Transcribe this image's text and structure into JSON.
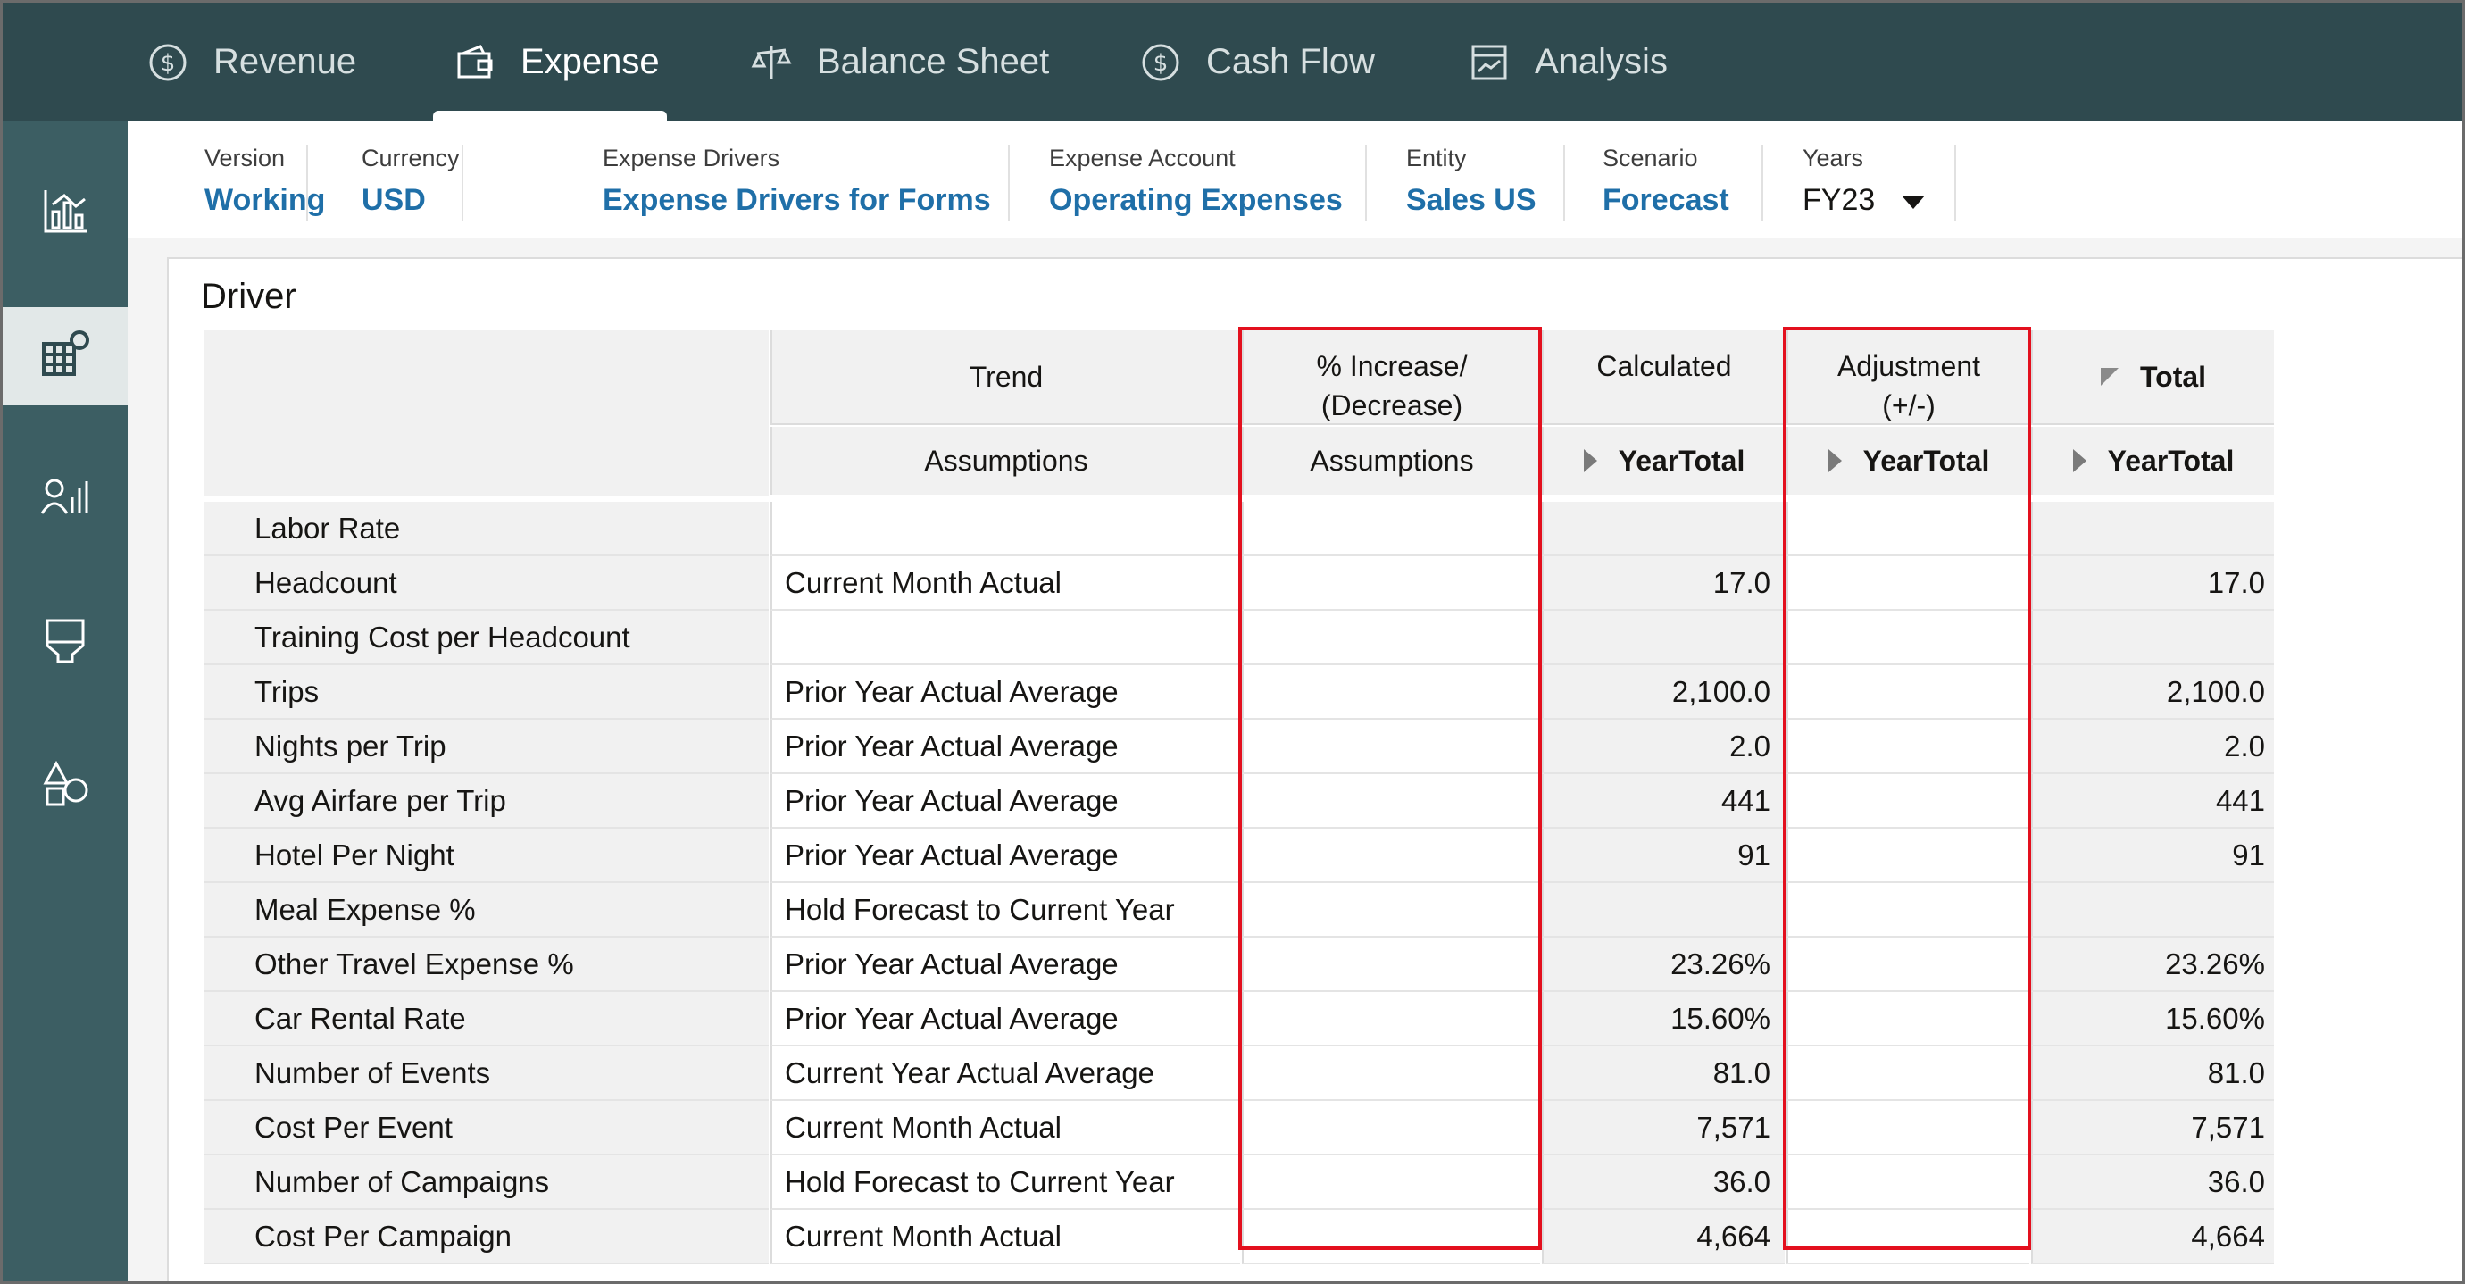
{
  "nav": {
    "tabs": [
      {
        "label": "Revenue",
        "icon": "dollar-cycle-icon"
      },
      {
        "label": "Expense",
        "icon": "wallet-icon",
        "active": true
      },
      {
        "label": "Balance Sheet",
        "icon": "scales-icon"
      },
      {
        "label": "Cash Flow",
        "icon": "dollar-cycle-icon"
      },
      {
        "label": "Analysis",
        "icon": "chart-report-icon"
      }
    ]
  },
  "rail": {
    "items": [
      {
        "icon": "bar-chart-icon"
      },
      {
        "icon": "grid-settings-icon",
        "active": true
      },
      {
        "icon": "people-chart-icon"
      },
      {
        "icon": "funnel-icon"
      },
      {
        "icon": "shapes-icon"
      }
    ]
  },
  "pov": [
    {
      "label": "Version",
      "value": "Working"
    },
    {
      "label": "Currency",
      "value": "USD"
    },
    {
      "label": "Expense Drivers",
      "value": "Expense Drivers for Forms"
    },
    {
      "label": "Expense Account",
      "value": "Operating Expenses"
    },
    {
      "label": "Entity",
      "value": "Sales US"
    },
    {
      "label": "Scenario",
      "value": "Forecast"
    },
    {
      "label": "Years",
      "value": "FY23"
    }
  ],
  "panel": {
    "title": "Driver"
  },
  "grid": {
    "headers": {
      "trend_top": "Trend",
      "trend_sub": "Assumptions",
      "pct_top_1": "% Increase/",
      "pct_top_2": "(Decrease)",
      "pct_sub": "Assumptions",
      "calc_top": "Calculated",
      "calc_sub": "YearTotal",
      "adj_top_1": "Adjustment",
      "adj_top_2": "(+/-)",
      "adj_sub": "YearTotal",
      "total_top": "Total",
      "total_sub": "YearTotal"
    },
    "rows": [
      {
        "name": "Labor Rate",
        "trend": "",
        "calc": "",
        "total": ""
      },
      {
        "name": "Headcount",
        "trend": "Current Month Actual",
        "calc": "17.0",
        "total": "17.0"
      },
      {
        "name": "Training Cost per Headcount",
        "trend": "",
        "calc": "",
        "total": ""
      },
      {
        "name": "Trips",
        "trend": "Prior Year Actual Average",
        "calc": "2,100.0",
        "total": "2,100.0"
      },
      {
        "name": "Nights per Trip",
        "trend": "Prior Year Actual Average",
        "calc": "2.0",
        "total": "2.0"
      },
      {
        "name": "Avg Airfare per Trip",
        "trend": "Prior Year Actual Average",
        "calc": "441",
        "total": "441"
      },
      {
        "name": "Hotel Per Night",
        "trend": "Prior Year Actual Average",
        "calc": "91",
        "total": "91"
      },
      {
        "name": "Meal Expense %",
        "trend": "Hold Forecast to Current Year",
        "calc": "",
        "total": ""
      },
      {
        "name": "Other Travel Expense %",
        "trend": "Prior Year Actual Average",
        "calc": "23.26%",
        "total": "23.26%"
      },
      {
        "name": "Car Rental Rate",
        "trend": "Prior Year Actual Average",
        "calc": "15.60%",
        "total": "15.60%"
      },
      {
        "name": "Number of Events",
        "trend": "Current Year Actual Average",
        "calc": "81.0",
        "total": "81.0"
      },
      {
        "name": "Cost Per Event",
        "trend": "Current Month Actual",
        "calc": "7,571",
        "total": "7,571"
      },
      {
        "name": "Number of Campaigns",
        "trend": "Hold Forecast to Current Year",
        "calc": "36.0",
        "total": "36.0"
      },
      {
        "name": "Cost Per Campaign",
        "trend": "Current Month Actual",
        "calc": "4,664",
        "total": "4,664"
      }
    ]
  },
  "colors": {
    "nav_bg": "#2f4a4f",
    "rail_bg": "#3c5e63",
    "link": "#1f6fa8",
    "highlight": "#e3101e"
  }
}
